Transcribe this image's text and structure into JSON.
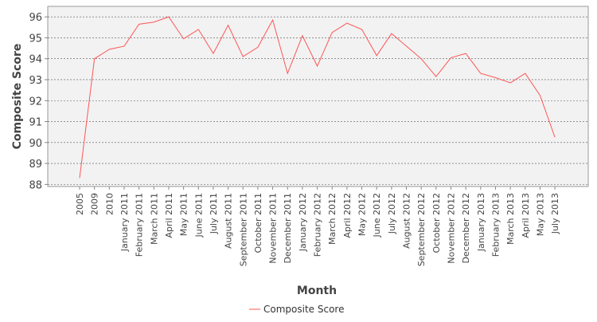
{
  "chart_data": {
    "type": "line",
    "xlabel": "Month",
    "ylabel": "Composite Score",
    "ylim": [
      87.9,
      96.5
    ],
    "yticks": [
      88,
      89,
      90,
      91,
      92,
      93,
      94,
      95,
      96
    ],
    "grid": true,
    "legend_position": "bottom",
    "categories": [
      "2005",
      "2009",
      "2010",
      "January 2011",
      "February 2011",
      "March 2011",
      "April 2011",
      "May 2011",
      "June 2011",
      "July 2011",
      "August 2011",
      "September 2011",
      "October 2011",
      "November 2011",
      "December 2011",
      "January 2012",
      "February 2012",
      "March 2012",
      "April 2012",
      "May 2012",
      "June 2012",
      "July 2012",
      "August 2012",
      "September 2012",
      "October 2012",
      "November 2012",
      "December 2012",
      "January 2013",
      "February 2013",
      "March 2013",
      "April 2013",
      "May 2013",
      "July 2013"
    ],
    "series": [
      {
        "name": "Composite Score",
        "color": "#ff5555",
        "values": [
          88.3,
          94.0,
          94.45,
          94.6,
          95.65,
          95.75,
          96.0,
          94.95,
          95.4,
          94.25,
          95.6,
          94.1,
          94.55,
          95.85,
          93.3,
          95.1,
          93.65,
          95.25,
          95.7,
          95.4,
          94.15,
          95.2,
          94.6,
          94.0,
          93.15,
          94.05,
          94.25,
          93.3,
          93.1,
          92.85,
          93.3,
          92.25,
          90.25
        ]
      }
    ]
  }
}
